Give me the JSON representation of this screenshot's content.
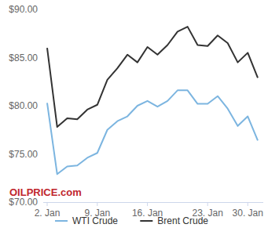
{
  "chart_data": {
    "type": "line",
    "categories": [
      "2. Jan",
      null,
      null,
      null,
      null,
      "9. Jan",
      null,
      null,
      null,
      null,
      "16. Jan",
      null,
      null,
      null,
      null,
      null,
      "23. Jan",
      null,
      null,
      null,
      "30. Jan",
      null
    ],
    "series": [
      {
        "name": "WTI Crude",
        "color": "#7cb5e0",
        "values": [
          80.3,
          72.9,
          73.7,
          73.8,
          74.6,
          75.1,
          77.5,
          78.4,
          78.9,
          80.0,
          80.5,
          79.9,
          80.5,
          81.6,
          81.6,
          80.2,
          80.2,
          81.0,
          79.7,
          77.9,
          78.9,
          76.4
        ]
      },
      {
        "name": "Brent Crude",
        "color": "#333333",
        "values": [
          86.0,
          77.8,
          78.7,
          78.6,
          79.6,
          80.1,
          82.7,
          83.9,
          85.3,
          84.5,
          86.1,
          85.3,
          86.3,
          87.7,
          88.2,
          86.3,
          86.2,
          87.3,
          86.5,
          84.5,
          85.5,
          82.9
        ]
      }
    ],
    "ylim": [
      70,
      90
    ],
    "yticks": [
      {
        "value": 70,
        "label": "$70.00"
      },
      {
        "value": 75,
        "label": "$75.00"
      },
      {
        "value": 80,
        "label": "$80.00"
      },
      {
        "value": 85,
        "label": "$85.00"
      },
      {
        "value": 90,
        "label": "$90.00"
      }
    ],
    "grid": false,
    "legend": "bottom",
    "annotations": [
      "OILPRICE.com"
    ]
  }
}
